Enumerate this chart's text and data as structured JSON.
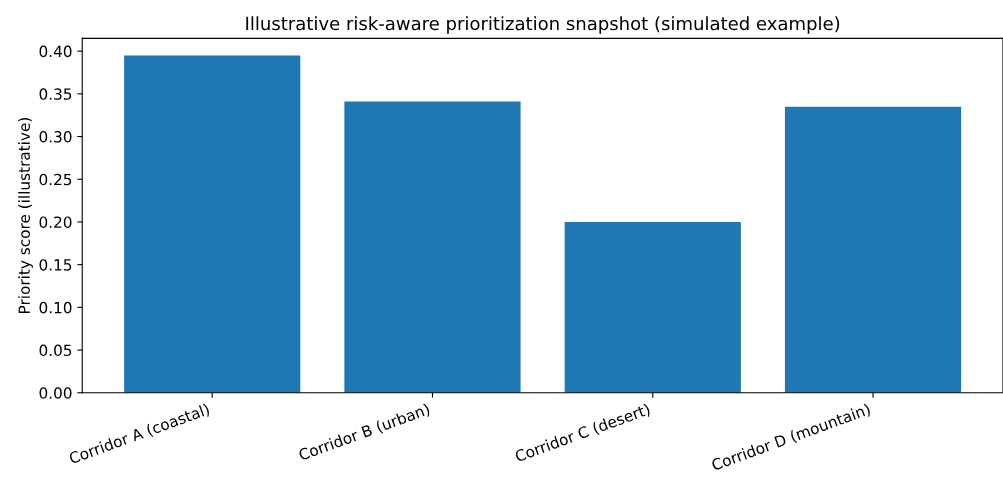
{
  "chart_data": {
    "type": "bar",
    "title": "Illustrative risk-aware prioritization snapshot (simulated example)",
    "ylabel": "Priority score (illustrative)",
    "categories": [
      "Corridor A (coastal)",
      "Corridor B (urban)",
      "Corridor C (desert)",
      "Corridor D (mountain)"
    ],
    "values": [
      0.395,
      0.341,
      0.2,
      0.335
    ],
    "color": "#1f77b4",
    "ylim": [
      0,
      0.415
    ],
    "yticks": [
      {
        "value": 0,
        "label": "0.00"
      },
      {
        "value": 0.05,
        "label": "0.05"
      },
      {
        "value": 0.1,
        "label": "0.10"
      },
      {
        "value": 0.15,
        "label": "0.15"
      },
      {
        "value": 0.2,
        "label": "0.20"
      },
      {
        "value": 0.25,
        "label": "0.25"
      },
      {
        "value": 0.3,
        "label": "0.30"
      },
      {
        "value": 0.35,
        "label": "0.35"
      },
      {
        "value": 0.4,
        "label": "0.40"
      }
    ],
    "grid": false,
    "legend": false
  }
}
